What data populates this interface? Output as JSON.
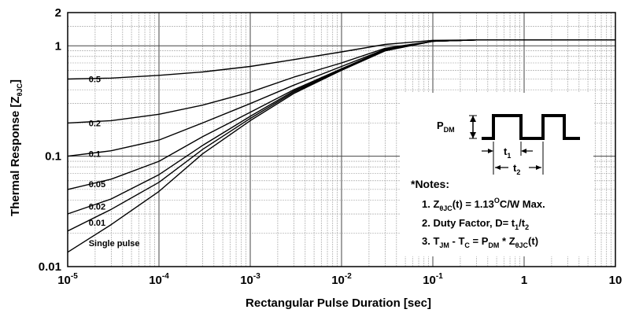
{
  "chart_data": {
    "type": "line",
    "xlabel": "Rectangular Pulse Duration [sec]",
    "ylabel_text": "Thermal Response [Z",
    "ylabel_sub": "θJC",
    "ylabel_close": "]",
    "x_scale": "log",
    "y_scale": "log",
    "xlim": [
      1e-05,
      10
    ],
    "ylim": [
      0.01,
      2
    ],
    "grid": true,
    "x_ticks": [
      {
        "value": 1e-05,
        "base": "10",
        "exp": "-5"
      },
      {
        "value": 0.0001,
        "base": "10",
        "exp": "-4"
      },
      {
        "value": 0.001,
        "base": "10",
        "exp": "-3"
      },
      {
        "value": 0.01,
        "base": "10",
        "exp": "-2"
      },
      {
        "value": 0.1,
        "base": "10",
        "exp": "-1"
      },
      {
        "value": 1,
        "base": "1",
        "exp": ""
      },
      {
        "value": 10,
        "base": "10",
        "exp": ""
      }
    ],
    "y_ticks": [
      {
        "value": 2,
        "label": "2"
      },
      {
        "value": 1,
        "label": "1"
      },
      {
        "value": 0.1,
        "label": "0.1"
      },
      {
        "value": 0.01,
        "label": "0.01"
      }
    ],
    "x": [
      1e-05,
      3e-05,
      0.0001,
      0.0003,
      0.001,
      0.003,
      0.01,
      0.03,
      0.1,
      0.3,
      1,
      3,
      10
    ],
    "series": [
      {
        "name": "0.5",
        "values": [
          0.5,
          0.51,
          0.54,
          0.58,
          0.65,
          0.75,
          0.88,
          1.03,
          1.12,
          1.13,
          1.13,
          1.13,
          1.13
        ]
      },
      {
        "name": "0.2",
        "values": [
          0.2,
          0.21,
          0.24,
          0.29,
          0.38,
          0.52,
          0.7,
          0.95,
          1.1,
          1.13,
          1.13,
          1.13,
          1.13
        ]
      },
      {
        "name": "0.1",
        "values": [
          0.1,
          0.112,
          0.14,
          0.2,
          0.3,
          0.44,
          0.65,
          0.93,
          1.1,
          1.13,
          1.13,
          1.13,
          1.13
        ]
      },
      {
        "name": "0.05",
        "values": [
          0.05,
          0.062,
          0.09,
          0.15,
          0.25,
          0.4,
          0.62,
          0.92,
          1.1,
          1.13,
          1.13,
          1.13,
          1.13
        ]
      },
      {
        "name": "0.02",
        "values": [
          0.03,
          0.041,
          0.068,
          0.125,
          0.23,
          0.39,
          0.61,
          0.91,
          1.1,
          1.13,
          1.13,
          1.13,
          1.13
        ]
      },
      {
        "name": "0.01",
        "values": [
          0.021,
          0.033,
          0.058,
          0.115,
          0.22,
          0.38,
          0.6,
          0.91,
          1.1,
          1.13,
          1.13,
          1.13,
          1.13
        ]
      },
      {
        "name": "Single pulse",
        "values": [
          0.0135,
          0.024,
          0.048,
          0.105,
          0.21,
          0.37,
          0.6,
          0.9,
          1.1,
          1.13,
          1.13,
          1.13,
          1.13
        ]
      }
    ],
    "labels": [
      {
        "text": "0.5",
        "x": 1.7e-05,
        "y": 0.5
      },
      {
        "text": "0.2",
        "x": 1.7e-05,
        "y": 0.2
      },
      {
        "text": "0.1",
        "x": 1.7e-05,
        "y": 0.105
      },
      {
        "text": "0.05",
        "x": 1.7e-05,
        "y": 0.056
      },
      {
        "text": "0.02",
        "x": 1.7e-05,
        "y": 0.035
      },
      {
        "text": "0.01",
        "x": 1.7e-05,
        "y": 0.025
      },
      {
        "text": "Single pulse",
        "x": 1.7e-05,
        "y": 0.0163
      }
    ]
  },
  "inset": {
    "pdm_main": "P",
    "pdm_sub": "DM",
    "t1_main": "t",
    "t1_sub": "1",
    "t2_main": "t",
    "t2_sub": "2",
    "notes_heading": "*Notes:",
    "note1": {
      "a": "1. Z",
      "b": "θJC",
      "c": "(t) = 1.13",
      "d": "O",
      "e": "C/W Max."
    },
    "note2": {
      "a": "2. Duty Factor, D= t",
      "b": "1",
      "c": "/t",
      "d": "2"
    },
    "note3": {
      "a": "3. T",
      "b": "JM",
      "c": " - T",
      "d": "C",
      "e": " = P",
      "f": "DM",
      "g": " * Z",
      "h": "θJC",
      "i": "(t)"
    }
  }
}
